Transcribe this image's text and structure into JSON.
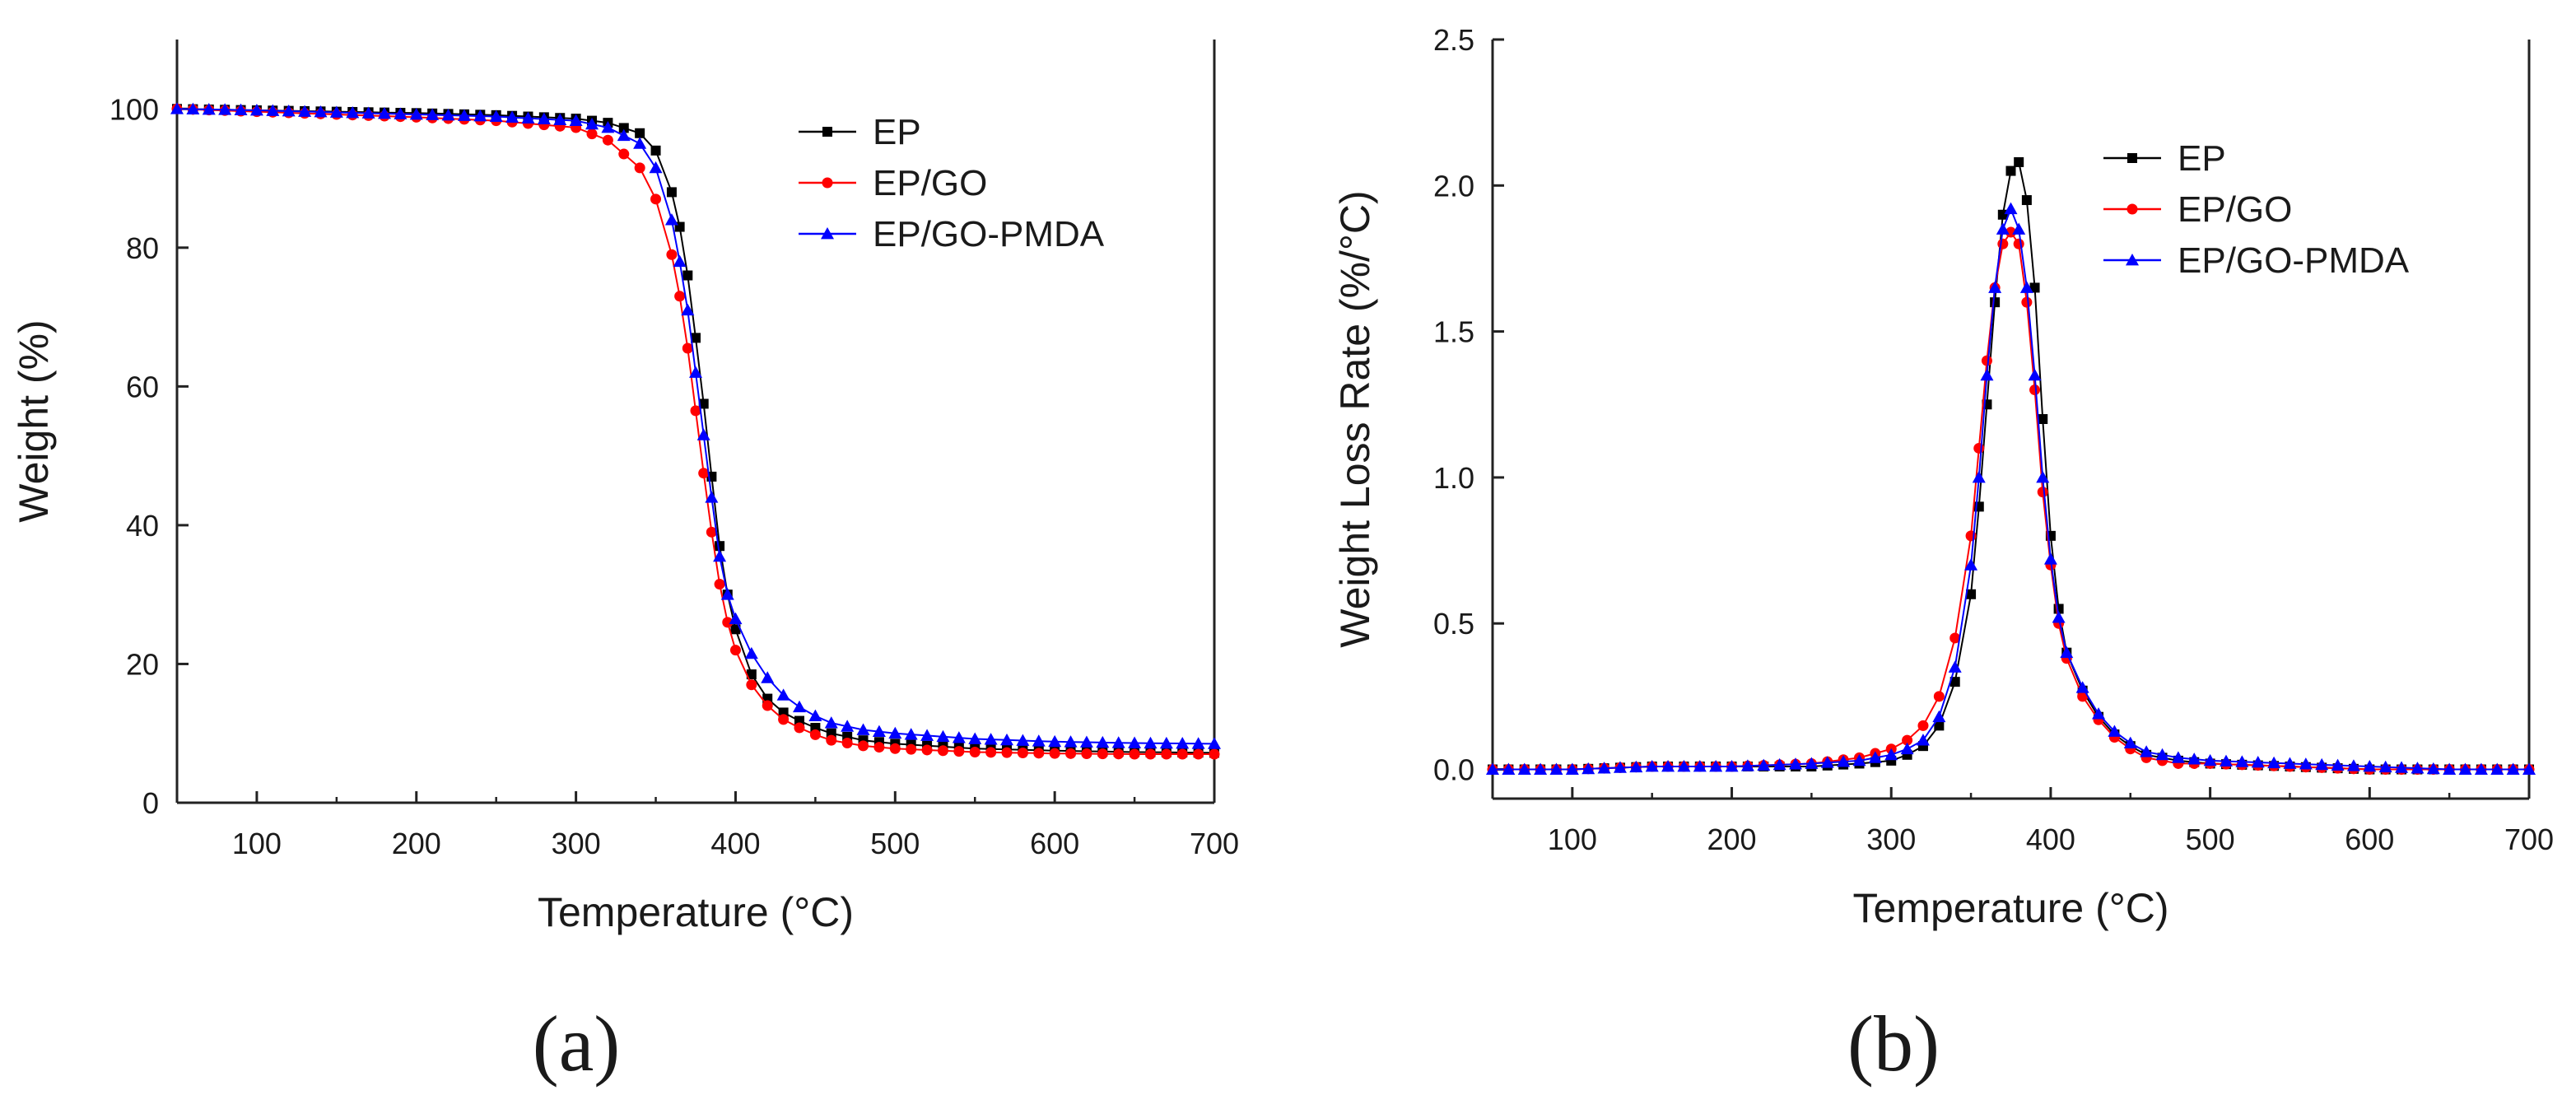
{
  "figure": {
    "panel_a_label": "(a)",
    "panel_b_label": "(b)"
  },
  "chart_data": [
    {
      "id": "a",
      "type": "scatter",
      "xlabel": "Temperature (°C)",
      "ylabel": "Weight (%)",
      "xlim": [
        50,
        700
      ],
      "ylim": [
        0,
        110
      ],
      "xticks": [
        100,
        200,
        300,
        400,
        500,
        600,
        700
      ],
      "yticks": [
        0,
        20,
        40,
        60,
        80,
        100
      ],
      "legend_position": "top-right",
      "series": [
        {
          "name": "EP",
          "color": "#000000",
          "marker": "square",
          "x": [
            50,
            100,
            150,
            200,
            250,
            300,
            320,
            340,
            350,
            360,
            365,
            370,
            375,
            380,
            385,
            390,
            395,
            400,
            410,
            420,
            430,
            440,
            450,
            460,
            480,
            500,
            550,
            600,
            650,
            700
          ],
          "y": [
            100,
            99.8,
            99.6,
            99.4,
            99.1,
            98.6,
            98.0,
            96.5,
            94.0,
            88.0,
            83.0,
            76.0,
            67.0,
            57.5,
            47.0,
            37.0,
            30.0,
            25.0,
            18.5,
            15.0,
            13.0,
            11.8,
            10.8,
            10.0,
            9.0,
            8.5,
            7.8,
            7.5,
            7.3,
            7.2
          ]
        },
        {
          "name": "EP/GO",
          "color": "#ff0000",
          "marker": "circle",
          "x": [
            50,
            100,
            150,
            200,
            250,
            300,
            320,
            340,
            350,
            360,
            365,
            370,
            375,
            380,
            385,
            390,
            395,
            400,
            410,
            420,
            430,
            440,
            450,
            460,
            480,
            500,
            550,
            600,
            650,
            700
          ],
          "y": [
            100,
            99.6,
            99.2,
            98.8,
            98.3,
            97.3,
            95.5,
            91.5,
            87.0,
            79.0,
            73.0,
            65.5,
            56.5,
            47.5,
            39.0,
            31.5,
            26.0,
            22.0,
            17.0,
            14.0,
            12.0,
            10.8,
            9.8,
            9.0,
            8.2,
            7.8,
            7.3,
            7.1,
            7.0,
            7.0
          ]
        },
        {
          "name": "EP/GO-PMDA",
          "color": "#0000ff",
          "marker": "triangle",
          "x": [
            50,
            100,
            150,
            200,
            250,
            300,
            320,
            340,
            350,
            360,
            365,
            370,
            375,
            380,
            385,
            390,
            395,
            400,
            410,
            420,
            430,
            440,
            450,
            460,
            480,
            500,
            550,
            600,
            650,
            700
          ],
          "y": [
            100,
            99.8,
            99.5,
            99.2,
            98.9,
            98.3,
            97.3,
            95.0,
            91.5,
            84.0,
            78.0,
            71.0,
            62.0,
            53.0,
            44.0,
            35.5,
            30.0,
            26.5,
            21.5,
            18.0,
            15.5,
            13.8,
            12.5,
            11.5,
            10.5,
            10.0,
            9.2,
            8.8,
            8.6,
            8.5
          ]
        }
      ]
    },
    {
      "id": "b",
      "type": "scatter",
      "xlabel": "Temperature (°C)",
      "ylabel": "Weight Loss Rate (%/°C)",
      "xlim": [
        50,
        700
      ],
      "ylim": [
        -0.1,
        2.5
      ],
      "xticks": [
        100,
        200,
        300,
        400,
        500,
        600,
        700
      ],
      "yticks": [
        0.0,
        0.5,
        1.0,
        1.5,
        2.0,
        2.5
      ],
      "ytick_labels": [
        "0.0",
        "0.5",
        "1.0",
        "1.5",
        "2.0",
        "2.5"
      ],
      "legend_position": "top-right",
      "series": [
        {
          "name": "EP",
          "color": "#000000",
          "marker": "square",
          "x": [
            50,
            100,
            150,
            200,
            250,
            280,
            300,
            310,
            320,
            330,
            340,
            350,
            355,
            360,
            365,
            370,
            375,
            380,
            385,
            390,
            395,
            400,
            405,
            410,
            420,
            430,
            440,
            450,
            460,
            480,
            500,
            550,
            600,
            650,
            700
          ],
          "y": [
            0.0,
            0.0,
            0.01,
            0.01,
            0.01,
            0.02,
            0.03,
            0.05,
            0.08,
            0.15,
            0.3,
            0.6,
            0.9,
            1.25,
            1.6,
            1.9,
            2.05,
            2.08,
            1.95,
            1.65,
            1.2,
            0.8,
            0.55,
            0.4,
            0.27,
            0.18,
            0.12,
            0.08,
            0.05,
            0.03,
            0.02,
            0.01,
            0.0,
            0.0,
            0.0
          ]
        },
        {
          "name": "EP/GO",
          "color": "#ff0000",
          "marker": "circle",
          "x": [
            50,
            100,
            150,
            200,
            250,
            280,
            300,
            310,
            320,
            330,
            340,
            350,
            355,
            360,
            365,
            370,
            375,
            380,
            385,
            390,
            395,
            400,
            405,
            410,
            420,
            430,
            440,
            450,
            460,
            480,
            500,
            550,
            600,
            650,
            700
          ],
          "y": [
            0.0,
            0.0,
            0.01,
            0.01,
            0.02,
            0.04,
            0.07,
            0.1,
            0.15,
            0.25,
            0.45,
            0.8,
            1.1,
            1.4,
            1.65,
            1.8,
            1.84,
            1.8,
            1.6,
            1.3,
            0.95,
            0.7,
            0.5,
            0.38,
            0.25,
            0.17,
            0.11,
            0.07,
            0.04,
            0.02,
            0.02,
            0.01,
            0.0,
            0.0,
            0.0
          ]
        },
        {
          "name": "EP/GO-PMDA",
          "color": "#0000ff",
          "marker": "triangle",
          "x": [
            50,
            100,
            150,
            200,
            250,
            280,
            300,
            310,
            320,
            330,
            340,
            350,
            355,
            360,
            365,
            370,
            375,
            380,
            385,
            390,
            395,
            400,
            405,
            410,
            420,
            430,
            440,
            450,
            460,
            480,
            500,
            550,
            600,
            650,
            700
          ],
          "y": [
            0.0,
            0.0,
            0.01,
            0.01,
            0.02,
            0.03,
            0.05,
            0.07,
            0.1,
            0.18,
            0.35,
            0.7,
            1.0,
            1.35,
            1.65,
            1.85,
            1.92,
            1.85,
            1.65,
            1.35,
            1.0,
            0.72,
            0.52,
            0.4,
            0.28,
            0.19,
            0.13,
            0.09,
            0.06,
            0.04,
            0.03,
            0.02,
            0.01,
            0.0,
            0.0
          ]
        }
      ]
    }
  ]
}
